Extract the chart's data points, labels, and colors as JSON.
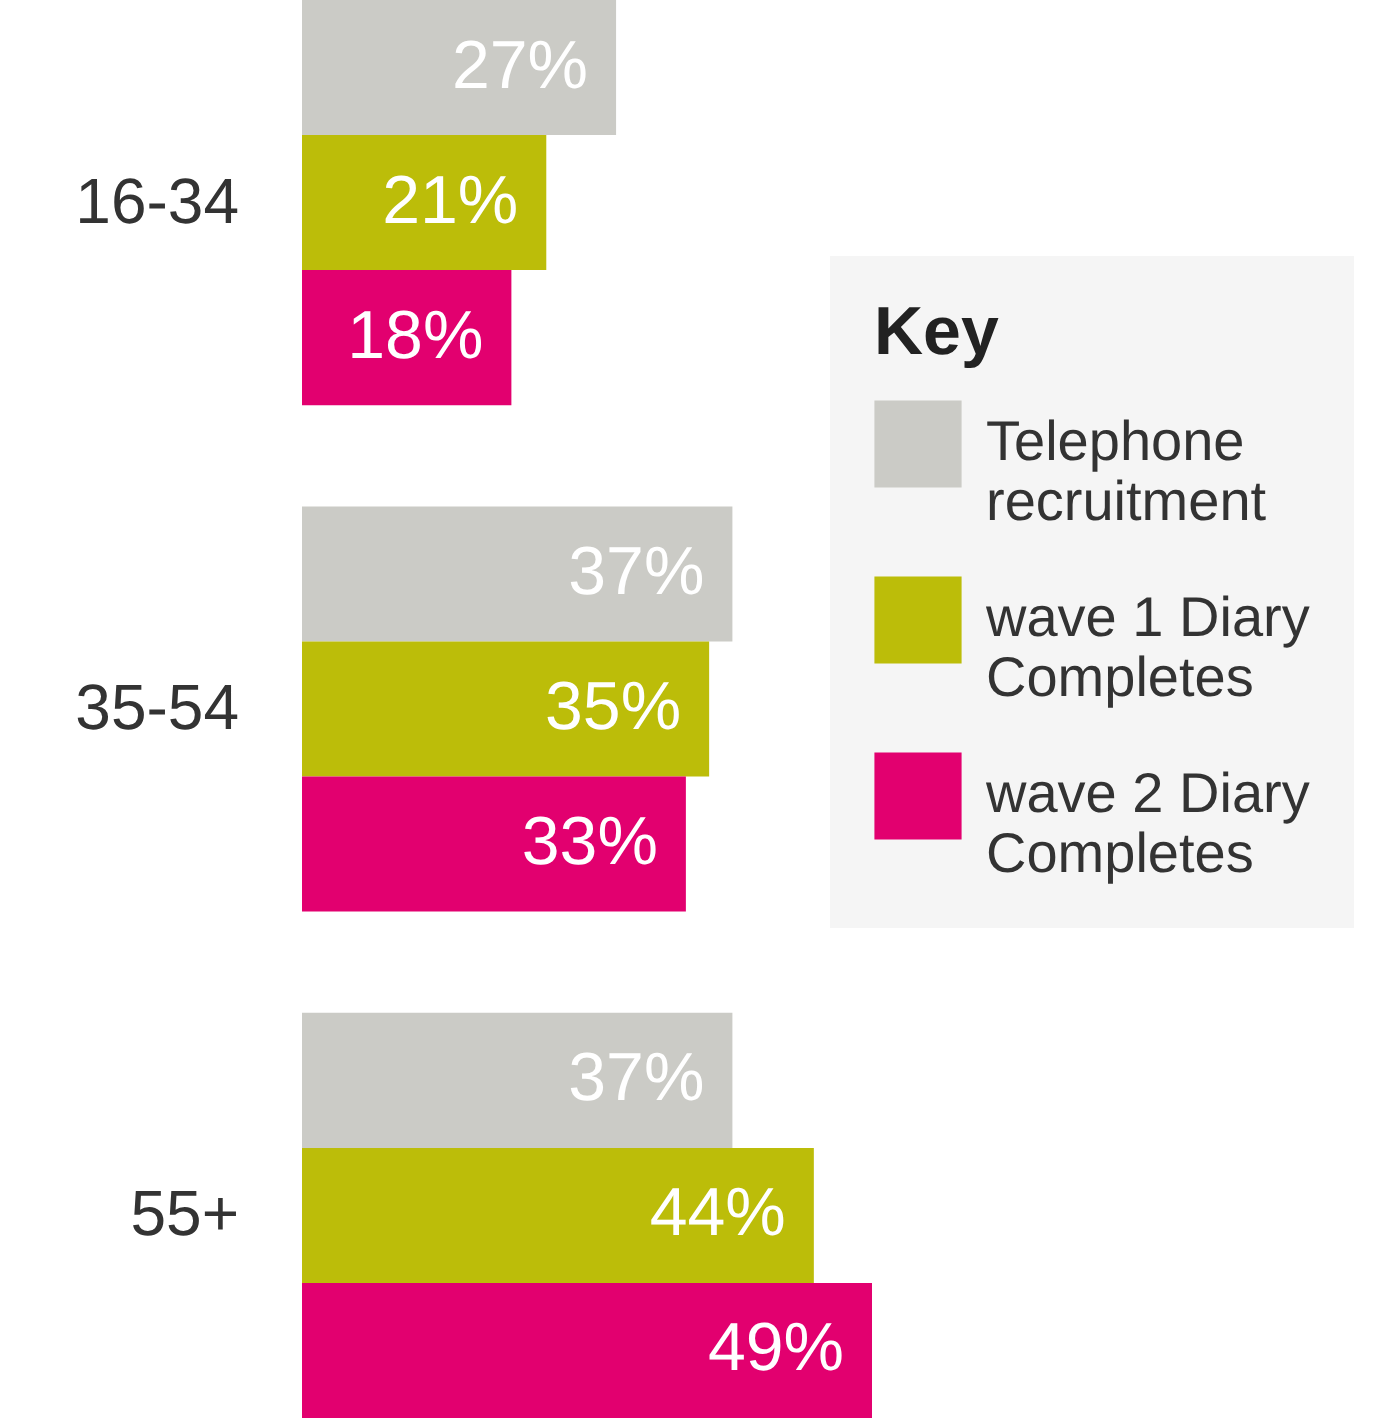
{
  "chart_data": {
    "type": "bar",
    "orientation": "horizontal",
    "categories": [
      "16-34",
      "35-54",
      "55+"
    ],
    "legend_title": "Key",
    "legend": "right",
    "series": [
      {
        "name": "Telephone recruitment",
        "color": "#cbcbc6",
        "values": [
          27,
          37,
          37
        ],
        "value_labels": [
          "27%",
          "37%",
          "37%"
        ]
      },
      {
        "name": "wave 1 Diary Completes",
        "color": "#bcbd09",
        "values": [
          21,
          35,
          44
        ],
        "value_labels": [
          "21%",
          "35%",
          "44%"
        ]
      },
      {
        "name": "wave 2 Diary Completes",
        "color": "#e2006f",
        "values": [
          18,
          33,
          49
        ],
        "value_labels": [
          "18%",
          "33%",
          "49%"
        ]
      }
    ]
  }
}
